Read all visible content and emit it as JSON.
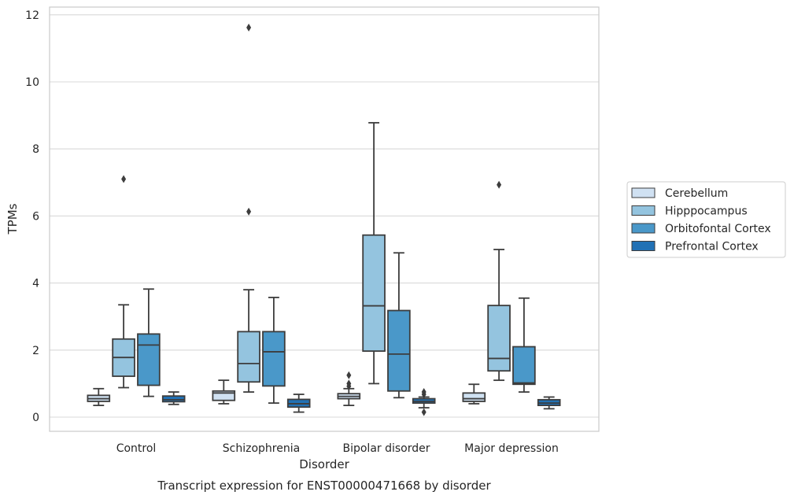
{
  "chart_data": {
    "type": "box",
    "caption": "Transcript expression for ENST00000471668 by disorder",
    "xlabel": "Disorder",
    "ylabel": "TPMs",
    "ylim": [
      -0.4,
      12.2
    ],
    "yticks": [
      0,
      2,
      4,
      6,
      8,
      10,
      12
    ],
    "grid": "horizontal",
    "legend_position": "right",
    "categories": [
      "Control",
      "Schizophrenia",
      "Bipolar disorder",
      "Major depression"
    ],
    "series": [
      {
        "name": "Cerebellum",
        "color": "#d0e1f2",
        "boxes": [
          {
            "whisker_low": 0.35,
            "q1": 0.47,
            "median": 0.55,
            "q3": 0.65,
            "whisker_high": 0.85,
            "outliers": []
          },
          {
            "whisker_low": 0.4,
            "q1": 0.5,
            "median": 0.72,
            "q3": 0.78,
            "whisker_high": 1.1,
            "outliers": []
          },
          {
            "whisker_low": 0.35,
            "q1": 0.55,
            "median": 0.62,
            "q3": 0.7,
            "whisker_high": 0.85,
            "outliers": [
              0.92,
              1.0,
              1.25
            ]
          },
          {
            "whisker_low": 0.4,
            "q1": 0.47,
            "median": 0.55,
            "q3": 0.72,
            "whisker_high": 0.98,
            "outliers": []
          }
        ]
      },
      {
        "name": "Hipppocampus",
        "color": "#94c4df",
        "boxes": [
          {
            "whisker_low": 0.88,
            "q1": 1.22,
            "median": 1.78,
            "q3": 2.33,
            "whisker_high": 3.35,
            "outliers": [
              7.1
            ]
          },
          {
            "whisker_low": 0.75,
            "q1": 1.05,
            "median": 1.6,
            "q3": 2.55,
            "whisker_high": 3.8,
            "outliers": [
              6.13,
              11.62
            ]
          },
          {
            "whisker_low": 1.0,
            "q1": 1.97,
            "median": 3.32,
            "q3": 5.43,
            "whisker_high": 8.78,
            "outliers": []
          },
          {
            "whisker_low": 1.1,
            "q1": 1.38,
            "median": 1.75,
            "q3": 3.33,
            "whisker_high": 5.0,
            "outliers": [
              6.93
            ]
          }
        ]
      },
      {
        "name": "Orbitofontal Cortex",
        "color": "#4a98c9",
        "boxes": [
          {
            "whisker_low": 0.62,
            "q1": 0.95,
            "median": 2.15,
            "q3": 2.48,
            "whisker_high": 3.82,
            "outliers": []
          },
          {
            "whisker_low": 0.42,
            "q1": 0.93,
            "median": 1.95,
            "q3": 2.55,
            "whisker_high": 3.57,
            "outliers": []
          },
          {
            "whisker_low": 0.58,
            "q1": 0.78,
            "median": 1.88,
            "q3": 3.18,
            "whisker_high": 4.9,
            "outliers": []
          },
          {
            "whisker_low": 0.75,
            "q1": 0.98,
            "median": 1.02,
            "q3": 2.1,
            "whisker_high": 3.55,
            "outliers": []
          }
        ]
      },
      {
        "name": "Prefrontal Cortex",
        "color": "#2171b5",
        "boxes": [
          {
            "whisker_low": 0.38,
            "q1": 0.46,
            "median": 0.52,
            "q3": 0.63,
            "whisker_high": 0.75,
            "outliers": []
          },
          {
            "whisker_low": 0.15,
            "q1": 0.3,
            "median": 0.4,
            "q3": 0.53,
            "whisker_high": 0.68,
            "outliers": []
          },
          {
            "whisker_low": 0.28,
            "q1": 0.42,
            "median": 0.47,
            "q3": 0.55,
            "whisker_high": 0.6,
            "outliers": [
              0.15,
              0.68,
              0.75
            ]
          },
          {
            "whisker_low": 0.25,
            "q1": 0.35,
            "median": 0.42,
            "q3": 0.52,
            "whisker_high": 0.6,
            "outliers": []
          }
        ]
      }
    ]
  }
}
